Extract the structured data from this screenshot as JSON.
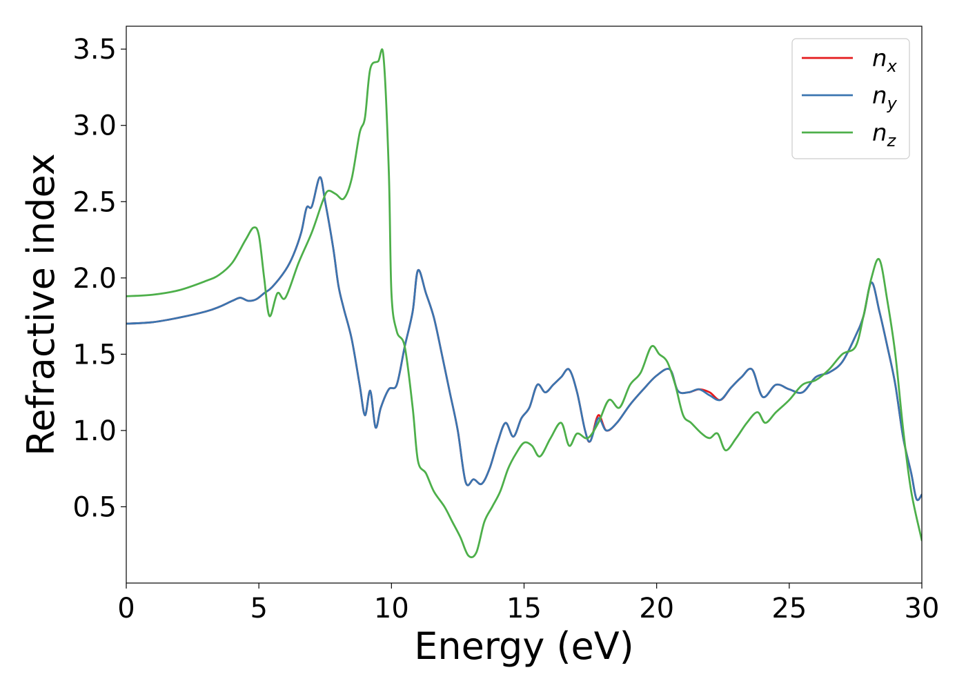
{
  "chart_data": {
    "type": "line",
    "xlabel": "Energy (eV)",
    "ylabel": "Refractive index",
    "xlim": [
      0,
      30
    ],
    "ylim": [
      0.0,
      3.65
    ],
    "xticks": [
      0,
      5,
      10,
      15,
      20,
      25,
      30
    ],
    "xtick_labels": [
      "0",
      "5",
      "10",
      "15",
      "20",
      "25",
      "30"
    ],
    "yticks": [
      0.5,
      1.0,
      1.5,
      2.0,
      2.5,
      3.0,
      3.5
    ],
    "ytick_labels": [
      "0.5",
      "1.0",
      "1.5",
      "2.0",
      "2.5",
      "3.0",
      "3.5"
    ],
    "grid": false,
    "legend_position": "top-right",
    "series": [
      {
        "name": "n_x",
        "label_base": "n",
        "label_sub": "x",
        "color": "#e41a1c",
        "x": [
          0,
          1,
          2,
          3,
          3.5,
          4,
          4.3,
          4.6,
          4.9,
          5.2,
          5.5,
          6.0,
          6.3,
          6.6,
          6.8,
          7.0,
          7.3,
          7.5,
          7.8,
          8.0,
          8.2,
          8.5,
          8.8,
          9.0,
          9.2,
          9.4,
          9.6,
          9.9,
          10.2,
          10.5,
          10.8,
          11.0,
          11.3,
          11.6,
          11.9,
          12.2,
          12.5,
          12.8,
          13.1,
          13.4,
          13.7,
          14.0,
          14.3,
          14.6,
          14.9,
          15.2,
          15.5,
          15.8,
          16.1,
          16.4,
          16.7,
          17.0,
          17.3,
          17.5,
          17.8,
          18.1,
          18.5,
          19.0,
          19.5,
          20.0,
          20.5,
          20.8,
          21.2,
          21.6,
          22.0,
          22.4,
          22.8,
          23.2,
          23.6,
          24.0,
          24.5,
          25.0,
          25.5,
          26.0,
          26.5,
          27.0,
          27.5,
          27.8,
          28.1,
          28.4,
          28.7,
          29.0,
          29.3,
          29.6,
          29.8,
          30.0
        ],
        "y": [
          1.7,
          1.71,
          1.74,
          1.78,
          1.81,
          1.85,
          1.87,
          1.85,
          1.86,
          1.9,
          1.94,
          2.05,
          2.15,
          2.3,
          2.46,
          2.47,
          2.66,
          2.5,
          2.2,
          1.95,
          1.8,
          1.6,
          1.3,
          1.1,
          1.26,
          1.02,
          1.15,
          1.27,
          1.3,
          1.55,
          1.78,
          2.05,
          1.9,
          1.74,
          1.5,
          1.25,
          1.0,
          0.66,
          0.68,
          0.65,
          0.75,
          0.92,
          1.05,
          0.96,
          1.08,
          1.15,
          1.3,
          1.25,
          1.3,
          1.35,
          1.4,
          1.25,
          1.0,
          0.93,
          1.1,
          1.0,
          1.05,
          1.17,
          1.27,
          1.36,
          1.4,
          1.26,
          1.25,
          1.27,
          1.25,
          1.2,
          1.28,
          1.35,
          1.4,
          1.22,
          1.3,
          1.27,
          1.25,
          1.35,
          1.38,
          1.45,
          1.62,
          1.75,
          1.97,
          1.78,
          1.55,
          1.3,
          0.95,
          0.72,
          0.55,
          0.58
        ]
      },
      {
        "name": "n_y",
        "label_base": "n",
        "label_sub": "y",
        "color": "#3a75b0",
        "x": [
          0,
          1,
          2,
          3,
          3.5,
          4,
          4.3,
          4.6,
          4.9,
          5.2,
          5.5,
          6.0,
          6.3,
          6.6,
          6.8,
          7.0,
          7.3,
          7.5,
          7.8,
          8.0,
          8.2,
          8.5,
          8.8,
          9.0,
          9.2,
          9.4,
          9.6,
          9.9,
          10.2,
          10.5,
          10.8,
          11.0,
          11.3,
          11.6,
          11.9,
          12.2,
          12.5,
          12.8,
          13.1,
          13.4,
          13.7,
          14.0,
          14.3,
          14.6,
          14.9,
          15.2,
          15.5,
          15.8,
          16.1,
          16.4,
          16.7,
          17.0,
          17.3,
          17.5,
          17.8,
          18.1,
          18.5,
          19.0,
          19.5,
          20.0,
          20.5,
          20.8,
          21.2,
          21.6,
          22.0,
          22.4,
          22.8,
          23.2,
          23.6,
          24.0,
          24.5,
          25.0,
          25.5,
          26.0,
          26.5,
          27.0,
          27.5,
          27.8,
          28.1,
          28.4,
          28.7,
          29.0,
          29.3,
          29.6,
          29.8,
          30.0
        ],
        "y": [
          1.7,
          1.71,
          1.74,
          1.78,
          1.81,
          1.85,
          1.87,
          1.85,
          1.86,
          1.9,
          1.94,
          2.05,
          2.15,
          2.3,
          2.46,
          2.47,
          2.66,
          2.5,
          2.2,
          1.95,
          1.8,
          1.6,
          1.3,
          1.1,
          1.26,
          1.02,
          1.15,
          1.27,
          1.3,
          1.55,
          1.78,
          2.05,
          1.9,
          1.74,
          1.5,
          1.25,
          1.0,
          0.66,
          0.68,
          0.65,
          0.75,
          0.92,
          1.05,
          0.96,
          1.08,
          1.15,
          1.3,
          1.25,
          1.3,
          1.35,
          1.4,
          1.25,
          1.0,
          0.93,
          1.08,
          1.0,
          1.05,
          1.17,
          1.27,
          1.36,
          1.4,
          1.26,
          1.25,
          1.27,
          1.23,
          1.2,
          1.28,
          1.35,
          1.4,
          1.22,
          1.3,
          1.27,
          1.25,
          1.35,
          1.38,
          1.45,
          1.62,
          1.75,
          1.97,
          1.78,
          1.55,
          1.3,
          0.95,
          0.72,
          0.55,
          0.58
        ]
      },
      {
        "name": "n_z",
        "label_base": "n",
        "label_sub": "z",
        "color": "#4daf4a",
        "x": [
          0,
          1,
          2,
          3,
          3.5,
          4,
          4.5,
          4.8,
          5.0,
          5.2,
          5.4,
          5.7,
          6.0,
          6.5,
          7.0,
          7.4,
          7.6,
          7.9,
          8.2,
          8.5,
          8.8,
          9.0,
          9.2,
          9.5,
          9.7,
          9.9,
          10.0,
          10.2,
          10.5,
          10.8,
          11.0,
          11.3,
          11.6,
          12.0,
          12.3,
          12.6,
          12.9,
          13.2,
          13.5,
          13.8,
          14.1,
          14.4,
          14.7,
          15.0,
          15.3,
          15.6,
          16.0,
          16.4,
          16.7,
          17.0,
          17.4,
          17.8,
          18.2,
          18.6,
          19.0,
          19.4,
          19.8,
          20.1,
          20.4,
          20.7,
          21.0,
          21.3,
          21.7,
          22.0,
          22.3,
          22.6,
          23.0,
          23.4,
          23.8,
          24.1,
          24.5,
          25.0,
          25.5,
          26.0,
          26.5,
          27.0,
          27.5,
          27.8,
          28.1,
          28.4,
          28.7,
          29.0,
          29.3,
          29.6,
          30.0
        ],
        "y": [
          1.88,
          1.89,
          1.92,
          1.98,
          2.02,
          2.1,
          2.25,
          2.33,
          2.28,
          2.0,
          1.75,
          1.9,
          1.87,
          2.1,
          2.3,
          2.5,
          2.57,
          2.55,
          2.52,
          2.65,
          2.95,
          3.05,
          3.37,
          3.42,
          3.45,
          2.7,
          1.9,
          1.65,
          1.55,
          1.15,
          0.8,
          0.72,
          0.6,
          0.5,
          0.4,
          0.3,
          0.18,
          0.2,
          0.4,
          0.5,
          0.6,
          0.75,
          0.85,
          0.92,
          0.9,
          0.83,
          0.95,
          1.05,
          0.9,
          0.98,
          0.95,
          1.05,
          1.2,
          1.15,
          1.3,
          1.38,
          1.55,
          1.5,
          1.45,
          1.3,
          1.1,
          1.05,
          0.98,
          0.95,
          0.98,
          0.87,
          0.95,
          1.05,
          1.12,
          1.05,
          1.12,
          1.2,
          1.3,
          1.33,
          1.4,
          1.5,
          1.55,
          1.75,
          2.0,
          2.12,
          1.85,
          1.5,
          1.0,
          0.6,
          0.28
        ]
      }
    ]
  }
}
